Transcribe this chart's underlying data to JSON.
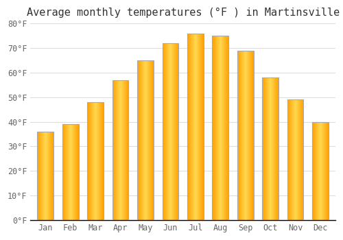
{
  "title": "Average monthly temperatures (°F ) in Martinsville",
  "months": [
    "Jan",
    "Feb",
    "Mar",
    "Apr",
    "May",
    "Jun",
    "Jul",
    "Aug",
    "Sep",
    "Oct",
    "Nov",
    "Dec"
  ],
  "values": [
    36,
    39,
    48,
    57,
    65,
    72,
    76,
    75,
    69,
    58,
    49,
    40
  ],
  "bar_color_center": "#FFD050",
  "bar_color_edge": "#FFA000",
  "bar_border_color": "#AAAAAA",
  "ylim": [
    0,
    80
  ],
  "yticks": [
    0,
    10,
    20,
    30,
    40,
    50,
    60,
    70,
    80
  ],
  "ytick_labels": [
    "0°F",
    "10°F",
    "20°F",
    "30°F",
    "40°F",
    "50°F",
    "60°F",
    "70°F",
    "80°F"
  ],
  "background_color": "#ffffff",
  "grid_color": "#dddddd",
  "title_fontsize": 11,
  "tick_fontsize": 8.5,
  "bar_width": 0.65
}
